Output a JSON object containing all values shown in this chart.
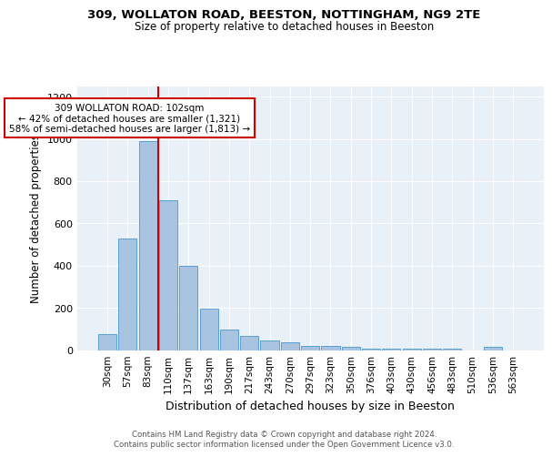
{
  "title1": "309, WOLLATON ROAD, BEESTON, NOTTINGHAM, NG9 2TE",
  "title2": "Size of property relative to detached houses in Beeston",
  "xlabel": "Distribution of detached houses by size in Beeston",
  "ylabel": "Number of detached properties",
  "categories": [
    "30sqm",
    "57sqm",
    "83sqm",
    "110sqm",
    "137sqm",
    "163sqm",
    "190sqm",
    "217sqm",
    "243sqm",
    "270sqm",
    "297sqm",
    "323sqm",
    "350sqm",
    "376sqm",
    "403sqm",
    "430sqm",
    "456sqm",
    "483sqm",
    "510sqm",
    "536sqm",
    "563sqm"
  ],
  "values": [
    75,
    530,
    990,
    710,
    400,
    195,
    95,
    65,
    45,
    35,
    20,
    20,
    15,
    8,
    8,
    5,
    5,
    5,
    0,
    15,
    0
  ],
  "bar_color": "#a8c4e0",
  "bar_edge_color": "#5a9fd4",
  "vline_color": "#cc0000",
  "annotation_text": "309 WOLLATON ROAD: 102sqm\n← 42% of detached houses are smaller (1,321)\n58% of semi-detached houses are larger (1,813) →",
  "annotation_box_color": "#ffffff",
  "annotation_box_edge": "#cc0000",
  "footer_text": "Contains HM Land Registry data © Crown copyright and database right 2024.\nContains public sector information licensed under the Open Government Licence v3.0.",
  "bg_color": "#e8f0f8",
  "ylim": [
    0,
    1250
  ],
  "yticks": [
    0,
    200,
    400,
    600,
    800,
    1000,
    1200
  ]
}
